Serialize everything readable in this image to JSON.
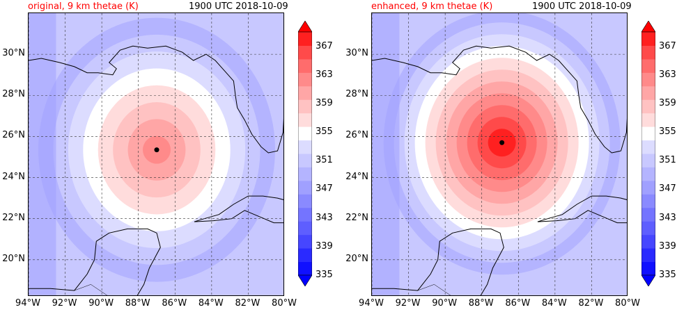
{
  "panels": [
    {
      "id": "original",
      "title_left": "original, 9 km thetae (K)",
      "title_right": "1900 UTC 2018-10-09",
      "center_lon": -87.0,
      "center_lat": 25.35,
      "peak_level": 363
    },
    {
      "id": "enhanced",
      "title_left": "enhanced, 9 km thetae (K)",
      "title_right": "1900 UTC 2018-10-09",
      "center_lon": -86.9,
      "center_lat": 25.7,
      "peak_level": 369
    }
  ],
  "axes": {
    "lon_range": [
      -94,
      -80
    ],
    "lat_range": [
      18.2,
      32.0
    ],
    "lon_ticks": [
      "94°W",
      "92°W",
      "90°W",
      "88°W",
      "86°W",
      "84°W",
      "82°W",
      "80°W"
    ],
    "lon_values": [
      -94,
      -92,
      -90,
      -88,
      -86,
      -84,
      -82,
      -80
    ],
    "lat_ticks": [
      "30°N",
      "28°N",
      "26°N",
      "24°N",
      "22°N",
      "20°N"
    ],
    "lat_values": [
      30,
      28,
      26,
      24,
      22,
      20
    ]
  },
  "colorbar": {
    "min": 335,
    "max": 369,
    "step": 2,
    "tick_labels": [
      "367",
      "363",
      "359",
      "355",
      "351",
      "347",
      "343",
      "339",
      "335"
    ],
    "tick_values": [
      367,
      363,
      359,
      355,
      351,
      347,
      343,
      339,
      335
    ],
    "colors": [
      "#1010ff",
      "#2a2aff",
      "#4646ff",
      "#5e5eff",
      "#7474ff",
      "#8a8aff",
      "#a0a0ff",
      "#b4b4ff",
      "#c8c8ff",
      "#dcdcff",
      "#ffffff",
      "#ffdcdc",
      "#ffc2c2",
      "#ffa6a6",
      "#ff8a8a",
      "#ff6c6c",
      "#ff4a4a",
      "#ff2020"
    ],
    "extend_low_color": "#0000ff",
    "extend_high_color": "#ff0000"
  }
}
